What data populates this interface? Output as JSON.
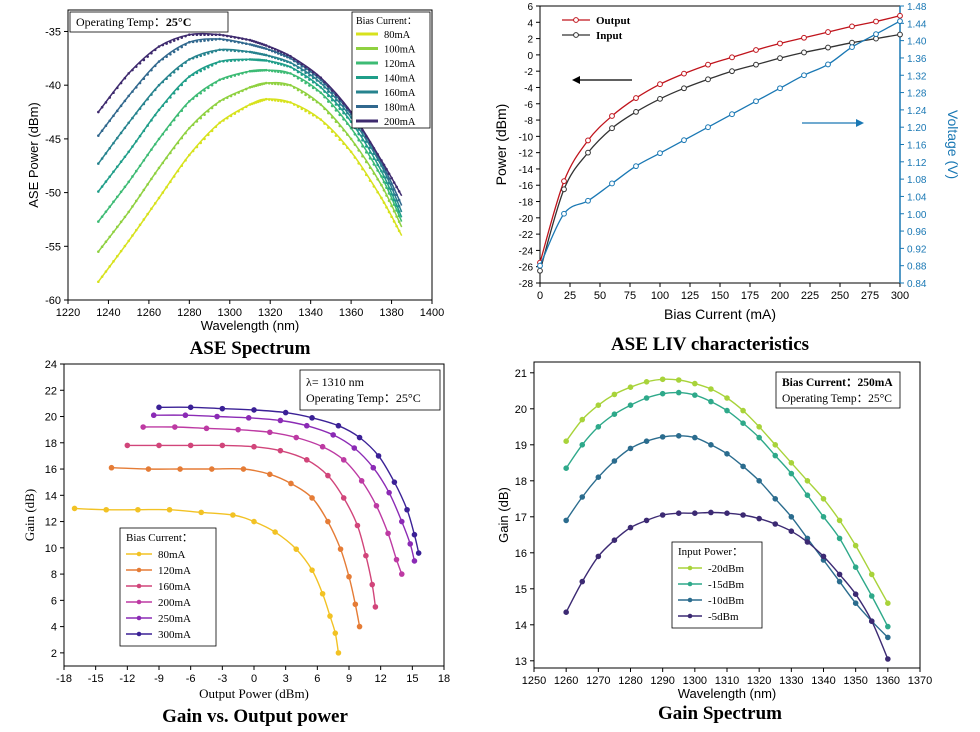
{
  "captions": {
    "tl": "ASE Spectrum",
    "tr": "ASE LIV characteristics",
    "bl": "Gain vs. Output power",
    "br": "Gain Spectrum"
  },
  "chart_data": [
    {
      "id": "ase_spectrum",
      "type": "line",
      "title": "",
      "annotation": "Operating Temp：",
      "annotation_value": "25°C",
      "legend_title": "Bias Current：",
      "xlabel": "Wavelength (nm)",
      "ylabel": "ASE Power (dBm)",
      "xlim": [
        1220,
        1400
      ],
      "ylim": [
        -60,
        -33
      ],
      "xticks": [
        1220,
        1240,
        1260,
        1280,
        1300,
        1320,
        1340,
        1360,
        1380,
        1400
      ],
      "yticks": [
        -60,
        -55,
        -50,
        -45,
        -40,
        -35
      ],
      "series": [
        {
          "name": "80mA",
          "color": "#d7e21c",
          "x": [
            1235,
            1250,
            1265,
            1280,
            1295,
            1310,
            1318,
            1330,
            1345,
            1360,
            1375,
            1385
          ],
          "y": [
            -58.3,
            -54.5,
            -50.5,
            -46.5,
            -43.5,
            -41.8,
            -41.3,
            -41.6,
            -43.2,
            -46.2,
            -50.5,
            -54.0
          ]
        },
        {
          "name": "100mA",
          "color": "#8fd140",
          "x": [
            1235,
            1250,
            1265,
            1280,
            1295,
            1310,
            1318,
            1330,
            1345,
            1360,
            1375,
            1385
          ],
          "y": [
            -55.5,
            -51.8,
            -47.7,
            -44.0,
            -41.5,
            -40.2,
            -39.8,
            -40.0,
            -41.8,
            -45.0,
            -49.3,
            -53.2
          ]
        },
        {
          "name": "120mA",
          "color": "#3dbb74",
          "x": [
            1235,
            1250,
            1265,
            1280,
            1295,
            1310,
            1318,
            1330,
            1345,
            1360,
            1375,
            1385
          ],
          "y": [
            -52.7,
            -49.0,
            -45.0,
            -41.5,
            -39.5,
            -38.7,
            -38.6,
            -38.9,
            -40.7,
            -44.0,
            -48.5,
            -52.7
          ]
        },
        {
          "name": "140mA",
          "color": "#1f9e89",
          "x": [
            1235,
            1250,
            1265,
            1280,
            1295,
            1310,
            1318,
            1330,
            1345,
            1360,
            1375,
            1385
          ],
          "y": [
            -49.9,
            -46.2,
            -42.3,
            -39.2,
            -37.8,
            -37.6,
            -37.7,
            -38.3,
            -40.2,
            -43.4,
            -48.0,
            -52.3
          ]
        },
        {
          "name": "160mA",
          "color": "#26838e",
          "x": [
            1235,
            1250,
            1265,
            1280,
            1295,
            1310,
            1318,
            1330,
            1345,
            1360,
            1375,
            1385
          ],
          "y": [
            -47.3,
            -43.5,
            -40.0,
            -37.6,
            -36.7,
            -36.9,
            -37.2,
            -37.9,
            -39.8,
            -43.0,
            -47.5,
            -51.8
          ]
        },
        {
          "name": "180mA",
          "color": "#31688e",
          "x": [
            1235,
            1250,
            1265,
            1280,
            1295,
            1310,
            1318,
            1330,
            1345,
            1360,
            1375,
            1385
          ],
          "y": [
            -44.7,
            -41.0,
            -37.8,
            -36.0,
            -35.7,
            -36.2,
            -36.6,
            -37.5,
            -39.5,
            -42.7,
            -47.2,
            -51.2
          ]
        },
        {
          "name": "200mA",
          "color": "#3e2a6e",
          "x": [
            1235,
            1250,
            1265,
            1280,
            1295,
            1310,
            1318,
            1330,
            1345,
            1360,
            1375,
            1385
          ],
          "y": [
            -42.5,
            -38.9,
            -36.4,
            -35.3,
            -35.3,
            -35.8,
            -36.3,
            -37.3,
            -39.3,
            -42.5,
            -47.0,
            -50.3
          ]
        }
      ]
    },
    {
      "id": "ase_liv",
      "type": "line",
      "title": "",
      "xlabel": "Bias Current (mA)",
      "ylabel": "Power (dBm)",
      "y2label": "Voltage (V)",
      "xlim": [
        0,
        300
      ],
      "ylim": [
        -28,
        6
      ],
      "y2lim": [
        0.84,
        1.48
      ],
      "xticks": [
        0,
        25,
        50,
        75,
        100,
        125,
        150,
        175,
        200,
        225,
        250,
        275,
        300
      ],
      "yticks": [
        -28,
        -26,
        -24,
        -22,
        -20,
        -18,
        -16,
        -14,
        -12,
        -10,
        -8,
        -6,
        -4,
        -2,
        0,
        2,
        4,
        6
      ],
      "y2ticks": [
        "0.84",
        "0.88",
        "0.92",
        "0.96",
        "1.00",
        "1.04",
        "1.08",
        "1.12",
        "1.16",
        "1.20",
        "1.24",
        "1.28",
        "1.32",
        "1.36",
        "1.40",
        "1.44",
        "1.48"
      ],
      "series": [
        {
          "name": "Output",
          "axis": "left",
          "color": "#c0141c",
          "x": [
            0,
            20,
            40,
            60,
            80,
            100,
            120,
            140,
            160,
            180,
            200,
            220,
            240,
            260,
            280,
            300
          ],
          "y": [
            -25.5,
            -15.5,
            -10.5,
            -7.5,
            -5.3,
            -3.6,
            -2.3,
            -1.2,
            -0.3,
            0.6,
            1.4,
            2.1,
            2.8,
            3.5,
            4.1,
            4.8
          ]
        },
        {
          "name": "Input",
          "axis": "left",
          "color": "#333333",
          "x": [
            0,
            20,
            40,
            60,
            80,
            100,
            120,
            140,
            160,
            180,
            200,
            220,
            240,
            260,
            280,
            300
          ],
          "y": [
            -26.5,
            -16.5,
            -12.0,
            -9.0,
            -7.0,
            -5.4,
            -4.1,
            -3.0,
            -2.0,
            -1.2,
            -0.4,
            0.3,
            0.9,
            1.5,
            2.0,
            2.5
          ]
        },
        {
          "name": "Voltage",
          "axis": "right",
          "color": "#1a78b4",
          "x": [
            0,
            20,
            40,
            60,
            80,
            100,
            120,
            140,
            160,
            180,
            200,
            220,
            240,
            260,
            280,
            300
          ],
          "y": [
            0.88,
            1.0,
            1.03,
            1.07,
            1.11,
            1.14,
            1.17,
            1.2,
            1.23,
            1.26,
            1.29,
            1.32,
            1.345,
            1.385,
            1.415,
            1.445
          ]
        }
      ],
      "legend": [
        "Output",
        "Input"
      ]
    },
    {
      "id": "gain_vs_output",
      "type": "line",
      "title": "",
      "annotation_lines": [
        "λ= 1310 nm",
        "Operating Temp：25°C"
      ],
      "legend_title": "Bias Current：",
      "xlabel": "Output Power (dBm)",
      "ylabel": "Gain (dB)",
      "xlim": [
        -18,
        18
      ],
      "ylim": [
        1,
        24
      ],
      "xticks": [
        -18,
        -15,
        -12,
        -9,
        -6,
        -3,
        0,
        3,
        6,
        9,
        12,
        15,
        18
      ],
      "yticks": [
        2,
        4,
        6,
        8,
        10,
        12,
        14,
        16,
        18,
        20,
        22,
        24
      ],
      "series": [
        {
          "name": "80mA",
          "color": "#f2c224",
          "x": [
            -17,
            -14,
            -11,
            -8,
            -5,
            -2,
            0,
            2,
            4,
            5.5,
            6.5,
            7.2,
            7.7,
            8.0
          ],
          "y": [
            13.0,
            12.9,
            12.9,
            12.9,
            12.7,
            12.5,
            12.0,
            11.2,
            9.9,
            8.3,
            6.5,
            4.8,
            3.5,
            2.0
          ]
        },
        {
          "name": "120mA",
          "color": "#e57c36",
          "x": [
            -13.5,
            -10,
            -7,
            -4,
            -1,
            1.5,
            3.5,
            5.5,
            7,
            8.2,
            9.0,
            9.6,
            10.0
          ],
          "y": [
            16.1,
            16.0,
            16.0,
            16.0,
            16.0,
            15.6,
            14.9,
            13.8,
            12.0,
            9.9,
            7.8,
            5.7,
            4.0
          ]
        },
        {
          "name": "160mA",
          "color": "#d1457a",
          "x": [
            -12,
            -9,
            -6,
            -3,
            0,
            2.5,
            5,
            7,
            8.5,
            9.8,
            10.6,
            11.2,
            11.5
          ],
          "y": [
            17.8,
            17.8,
            17.8,
            17.8,
            17.7,
            17.4,
            16.7,
            15.5,
            13.8,
            11.7,
            9.4,
            7.2,
            5.5
          ]
        },
        {
          "name": "200mA",
          "color": "#bd3aa3",
          "x": [
            -10.5,
            -7.5,
            -4.5,
            -1.5,
            1.5,
            4,
            6.5,
            8.5,
            10.2,
            11.6,
            12.7,
            13.5,
            14.0
          ],
          "y": [
            19.2,
            19.2,
            19.1,
            19.0,
            18.8,
            18.4,
            17.7,
            16.7,
            15.1,
            13.2,
            11.1,
            9.1,
            8.0
          ]
        },
        {
          "name": "250mA",
          "color": "#8b2bb5",
          "x": [
            -9.5,
            -6.5,
            -3.5,
            -0.5,
            2.5,
            5,
            7.5,
            9.5,
            11.3,
            12.8,
            14.0,
            14.8,
            15.2
          ],
          "y": [
            20.1,
            20.1,
            20.0,
            19.9,
            19.7,
            19.3,
            18.6,
            17.6,
            16.1,
            14.2,
            12.0,
            10.3,
            9.0
          ]
        },
        {
          "name": "300mA",
          "color": "#3b2196",
          "x": [
            -9,
            -6,
            -3,
            0,
            3,
            5.5,
            8,
            10,
            11.8,
            13.3,
            14.5,
            15.2,
            15.6
          ],
          "y": [
            20.7,
            20.7,
            20.6,
            20.5,
            20.3,
            19.9,
            19.3,
            18.4,
            17.0,
            15.0,
            12.9,
            11.0,
            9.6
          ]
        }
      ]
    },
    {
      "id": "gain_spectrum",
      "type": "line",
      "title": "",
      "annotation_bold": "Bias Current：250mA",
      "annotation_line2": "Operating Temp：25°C",
      "legend_title": "Input Power：",
      "xlabel": "Wavelength (nm)",
      "ylabel": "Gain (dB)",
      "xlim": [
        1250,
        1370
      ],
      "ylim": [
        12.8,
        21.3
      ],
      "xticks": [
        1250,
        1260,
        1270,
        1280,
        1290,
        1300,
        1310,
        1320,
        1330,
        1340,
        1350,
        1360,
        1370
      ],
      "yticks": [
        13,
        14,
        15,
        16,
        17,
        18,
        19,
        20,
        21
      ],
      "series": [
        {
          "name": "-20dBm",
          "color": "#a8d33a",
          "x": [
            1260,
            1265,
            1270,
            1275,
            1280,
            1285,
            1290,
            1295,
            1300,
            1305,
            1310,
            1315,
            1320,
            1325,
            1330,
            1335,
            1340,
            1345,
            1350,
            1355,
            1360
          ],
          "y": [
            19.1,
            19.7,
            20.1,
            20.4,
            20.6,
            20.75,
            20.82,
            20.8,
            20.7,
            20.55,
            20.3,
            19.95,
            19.5,
            19.0,
            18.5,
            18.0,
            17.5,
            16.9,
            16.2,
            15.4,
            14.6
          ]
        },
        {
          "name": "-15dBm",
          "color": "#2ea98a",
          "x": [
            1260,
            1265,
            1270,
            1275,
            1280,
            1285,
            1290,
            1295,
            1300,
            1305,
            1310,
            1315,
            1320,
            1325,
            1330,
            1335,
            1340,
            1345,
            1350,
            1355,
            1360
          ],
          "y": [
            18.35,
            19.0,
            19.5,
            19.85,
            20.1,
            20.3,
            20.42,
            20.45,
            20.38,
            20.2,
            19.95,
            19.6,
            19.2,
            18.7,
            18.2,
            17.6,
            17.0,
            16.4,
            15.6,
            14.8,
            13.95
          ]
        },
        {
          "name": "-10dBm",
          "color": "#2b6c8e",
          "x": [
            1260,
            1265,
            1270,
            1275,
            1280,
            1285,
            1290,
            1295,
            1300,
            1305,
            1310,
            1315,
            1320,
            1325,
            1330,
            1335,
            1340,
            1345,
            1350,
            1355,
            1360
          ],
          "y": [
            16.9,
            17.55,
            18.1,
            18.55,
            18.9,
            19.1,
            19.22,
            19.25,
            19.2,
            19.0,
            18.75,
            18.4,
            18.0,
            17.5,
            17.0,
            16.4,
            15.8,
            15.2,
            14.6,
            14.1,
            13.65
          ]
        },
        {
          "name": "-5dBm",
          "color": "#3c2a73",
          "x": [
            1260,
            1265,
            1270,
            1275,
            1280,
            1285,
            1290,
            1295,
            1300,
            1305,
            1310,
            1315,
            1320,
            1325,
            1330,
            1335,
            1340,
            1345,
            1350,
            1355,
            1360
          ],
          "y": [
            14.35,
            15.2,
            15.9,
            16.35,
            16.7,
            16.9,
            17.05,
            17.1,
            17.1,
            17.12,
            17.1,
            17.05,
            16.95,
            16.8,
            16.6,
            16.3,
            15.9,
            15.4,
            14.85,
            14.1,
            13.05
          ]
        }
      ]
    }
  ]
}
